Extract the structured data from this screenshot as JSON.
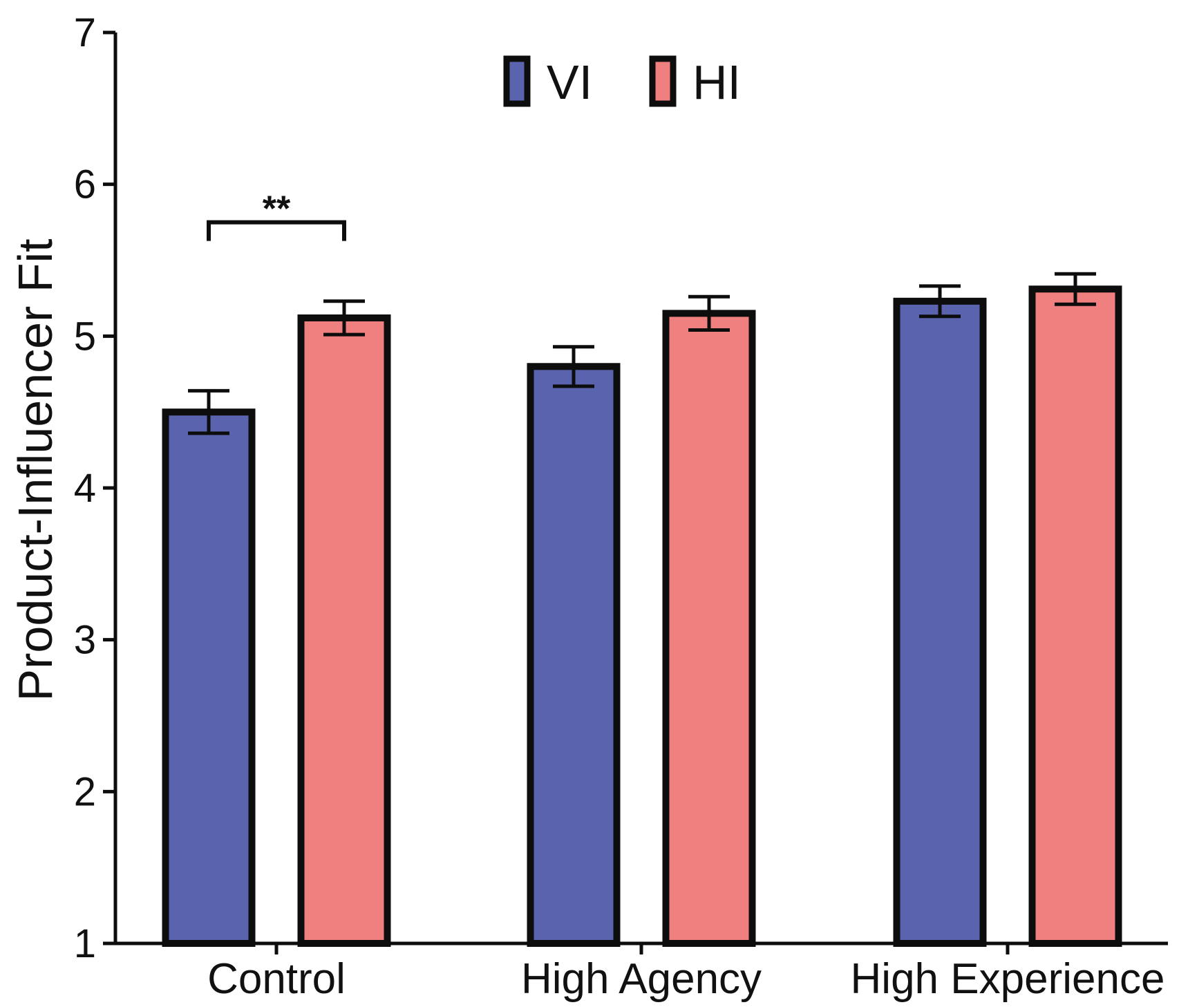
{
  "chart_data": {
    "type": "bar",
    "title": "",
    "xlabel": "",
    "ylabel": "Product-Influencer Fit",
    "ylim": [
      1,
      7
    ],
    "yticks": [
      "1",
      "2",
      "3",
      "4",
      "5",
      "6",
      "7"
    ],
    "categories": [
      "Control",
      "High Agency",
      "High Experience"
    ],
    "series": [
      {
        "name": "VI",
        "color": "#5a63ad",
        "values": [
          4.5,
          4.8,
          5.23
        ],
        "errors": [
          0.14,
          0.13,
          0.1
        ]
      },
      {
        "name": "HI",
        "color": "#f08080",
        "values": [
          5.12,
          5.15,
          5.31
        ],
        "errors": [
          0.11,
          0.11,
          0.1
        ]
      }
    ],
    "legend": {
      "position": "top-center",
      "entries": [
        "VI",
        "HI"
      ]
    },
    "annotations": [
      {
        "label": "**",
        "category": "Control",
        "from_series": "VI",
        "to_series": "HI",
        "y": 5.75
      }
    ],
    "grid": false
  }
}
